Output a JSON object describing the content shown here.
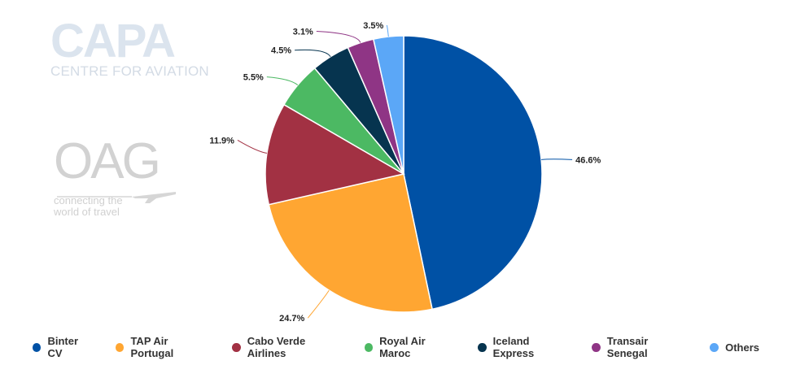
{
  "logos": {
    "capa_main": "CAPA",
    "capa_sub": "CENTRE FOR AVIATION",
    "oag_main": "OAG",
    "oag_tagline": "connecting the world of travel"
  },
  "chart_data": {
    "type": "pie",
    "title": "",
    "categories": [
      "Binter CV",
      "TAP Air Portugal",
      "Cabo Verde Airlines",
      "Royal Air Maroc",
      "Iceland Express",
      "Transair Senegal",
      "Others"
    ],
    "values": [
      46.6,
      24.7,
      11.9,
      5.5,
      4.5,
      3.1,
      3.5
    ],
    "value_labels": [
      "46.6%",
      "24.7%",
      "11.9%",
      "5.5%",
      "4.5%",
      "3.1%",
      "3.5%"
    ],
    "colors": [
      "#0051a5",
      "#ffa632",
      "#a23143",
      "#4cb963",
      "#06344f",
      "#8f3585",
      "#5ba7f7"
    ],
    "legend_position": "bottom",
    "start": "top, clockwise"
  }
}
